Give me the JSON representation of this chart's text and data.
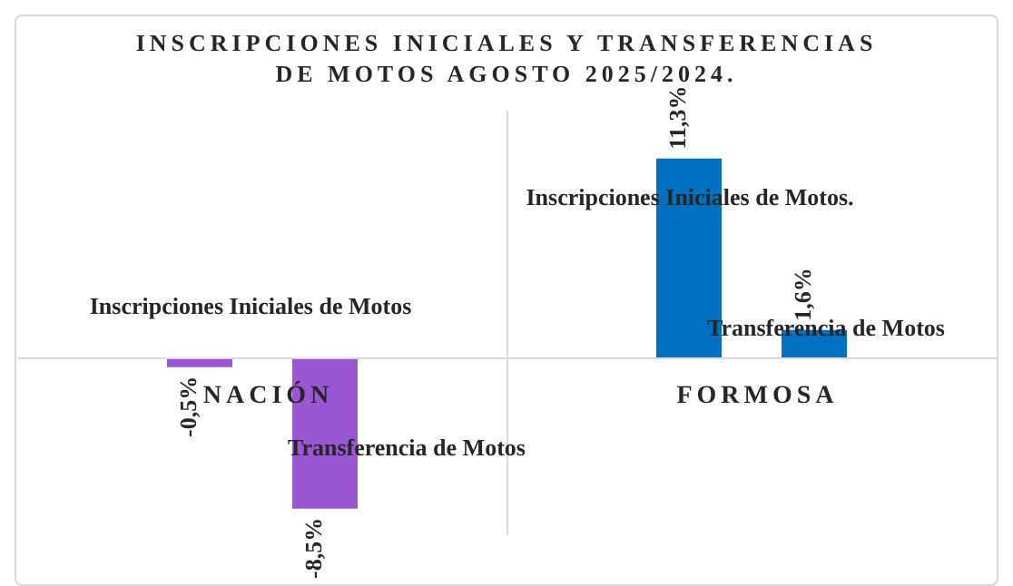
{
  "chart_data": {
    "type": "bar",
    "title": "INSCRIPCIONES INICIALES Y TRANSFERENCIAS DE MOTOS AGOSTO 2025/2024.",
    "categories": [
      "NACIÓN",
      "FORMOSA"
    ],
    "series": [
      {
        "colors": [
          "#9b57d3",
          "#0070c0"
        ],
        "values": [
          -0.5,
          11.3
        ],
        "value_labels": [
          "-0,5%",
          "11,3%"
        ]
      },
      {
        "colors": [
          "#9b57d3",
          "#0070c0"
        ],
        "values": [
          -8.5,
          1.6
        ],
        "value_labels": [
          "-8,5%",
          "1,6%"
        ]
      }
    ],
    "ylim": [
      -10,
      14
    ],
    "grid": "x",
    "legend": false,
    "annotations": [
      "Inscripciones Iniciales de Motos",
      "Transferencia de Motos",
      "Inscripciones Iniciales de Motos.",
      "Transferencia de Motos"
    ]
  }
}
